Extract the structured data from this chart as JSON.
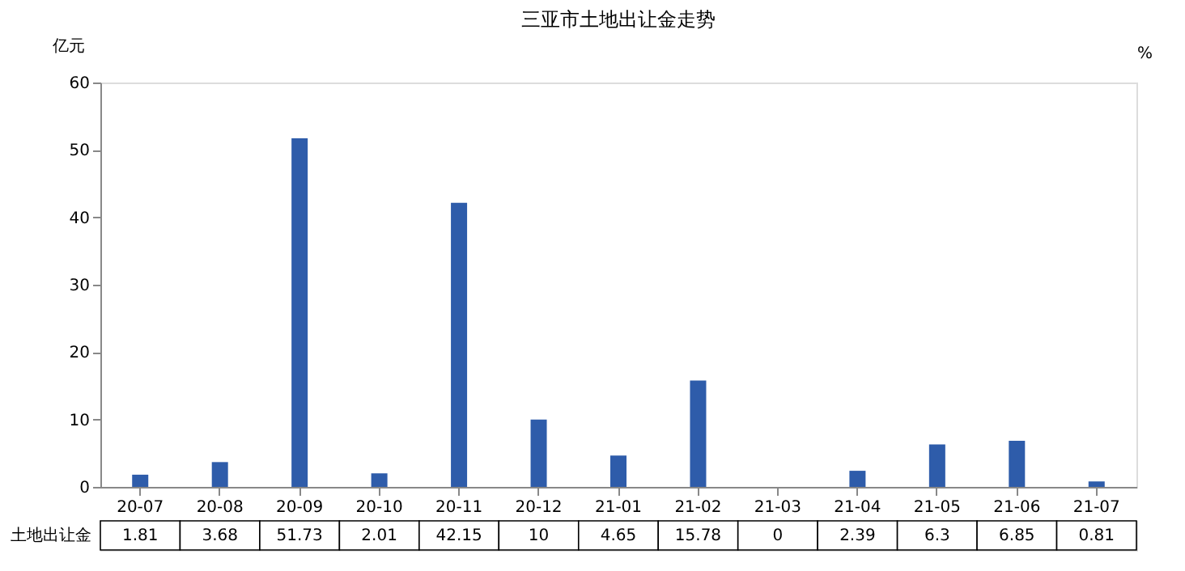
{
  "chart_data": {
    "type": "bar",
    "title": "三亚市土地出让金走势",
    "ylabel": "亿元",
    "y2label": "%",
    "categories": [
      "20-07",
      "20-08",
      "20-09",
      "20-10",
      "20-11",
      "20-12",
      "21-01",
      "21-02",
      "21-03",
      "21-04",
      "21-05",
      "21-06",
      "21-07"
    ],
    "series": [
      {
        "name": "土地出让金",
        "color": "#2e5caa",
        "values": [
          1.81,
          3.68,
          51.73,
          2.01,
          42.15,
          10,
          4.65,
          15.78,
          0,
          2.39,
          6.3,
          6.85,
          0.81
        ]
      }
    ],
    "ylim": [
      0,
      60
    ],
    "yticks": [
      0,
      10,
      20,
      30,
      40,
      50,
      60
    ],
    "grid": false,
    "legend": false,
    "data_labels": true
  }
}
